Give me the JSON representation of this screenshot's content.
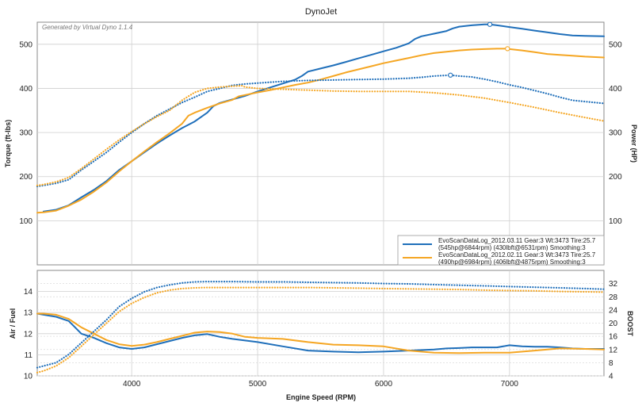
{
  "chart_data": [
    {
      "type": "line",
      "title": "DynoJet",
      "watermark": "Generated by Virtual Dyno 1.1.4",
      "xlabel": "Engine Speed (RPM)",
      "ylabel": "Torque (ft-lbs)",
      "ylabel_right": "Power (HP)",
      "xlim": [
        3250,
        7750
      ],
      "ylim": [
        0,
        550
      ],
      "xticks": [
        4000,
        5000,
        6000,
        7000
      ],
      "yticks": [
        100,
        200,
        300,
        400,
        500
      ],
      "grid": true,
      "legend_position": "bottom-right",
      "legend": [
        {
          "line1": "EvoScanDataLog_2012.03.11 Gear:3 Wt:3473 Tire:25.7",
          "line2": "(545hp@6844rpm) (430lbft@6531rpm) Smoothing:3",
          "color": "#1f6fba"
        },
        {
          "line1": "EvoScanDataLog_2012.02.11 Gear:3 Wt:3473 Tire:25.7",
          "line2": "(490hp@6984rpm) (406lbft@4875rpm) Smoothing:3",
          "color": "#f5a623"
        }
      ],
      "series": [
        {
          "name": "Power 2012.03.11",
          "color": "#1f6fba",
          "style": "solid",
          "x": [
            3300,
            3400,
            3500,
            3600,
            3700,
            3800,
            3900,
            4000,
            4100,
            4200,
            4300,
            4400,
            4500,
            4600,
            4650,
            4700,
            4800,
            4900,
            5000,
            5100,
            5200,
            5300,
            5350,
            5400,
            5500,
            5600,
            5700,
            5800,
            5900,
            6000,
            6100,
            6200,
            6250,
            6300,
            6400,
            6500,
            6550,
            6600,
            6700,
            6800,
            6844,
            6900,
            7000,
            7100,
            7200,
            7300,
            7400,
            7500,
            7600,
            7750
          ],
          "y": [
            121,
            125,
            135,
            153,
            170,
            190,
            215,
            235,
            255,
            275,
            293,
            310,
            325,
            345,
            360,
            367,
            375,
            383,
            393,
            402,
            411,
            420,
            428,
            438,
            445,
            452,
            460,
            468,
            476,
            484,
            492,
            502,
            512,
            518,
            524,
            530,
            536,
            540,
            543,
            545,
            545,
            543,
            539,
            535,
            531,
            527,
            523,
            520,
            519,
            518
          ]
        },
        {
          "name": "Power 2012.02.11",
          "color": "#f5a623",
          "style": "solid",
          "x": [
            3250,
            3300,
            3400,
            3500,
            3600,
            3700,
            3800,
            3900,
            4000,
            4100,
            4200,
            4300,
            4400,
            4450,
            4500,
            4600,
            4700,
            4800,
            4850,
            4900,
            5000,
            5100,
            5200,
            5300,
            5400,
            5500,
            5600,
            5700,
            5800,
            5900,
            6000,
            6100,
            6200,
            6300,
            6400,
            6500,
            6600,
            6700,
            6800,
            6900,
            6984,
            7000,
            7100,
            7200,
            7300,
            7400,
            7500,
            7600,
            7750
          ],
          "y": [
            118,
            119,
            123,
            134,
            148,
            166,
            187,
            212,
            235,
            257,
            278,
            298,
            320,
            338,
            345,
            356,
            366,
            374,
            382,
            385,
            391,
            396,
            402,
            408,
            413,
            420,
            428,
            436,
            443,
            450,
            457,
            463,
            469,
            475,
            480,
            483,
            486,
            488,
            489,
            490,
            490,
            489,
            486,
            482,
            478,
            476,
            474,
            472,
            470
          ]
        },
        {
          "name": "Torque 2012.03.11",
          "color": "#1f6fba",
          "style": "dotted",
          "x": [
            3250,
            3300,
            3400,
            3500,
            3600,
            3700,
            3800,
            3900,
            4000,
            4100,
            4200,
            4300,
            4400,
            4500,
            4600,
            4700,
            4800,
            4900,
            5000,
            5200,
            5400,
            5600,
            5800,
            6000,
            6200,
            6300,
            6400,
            6531,
            6600,
            6700,
            6800,
            6900,
            7000,
            7100,
            7200,
            7300,
            7400,
            7500,
            7600,
            7750
          ],
          "y": [
            178,
            180,
            185,
            193,
            215,
            235,
            255,
            278,
            300,
            320,
            338,
            353,
            368,
            380,
            393,
            400,
            407,
            410,
            412,
            416,
            418,
            419,
            420,
            421,
            423,
            425,
            428,
            430,
            428,
            426,
            421,
            415,
            408,
            402,
            395,
            388,
            380,
            373,
            370,
            366
          ]
        },
        {
          "name": "Torque 2012.02.11",
          "color": "#f5a623",
          "style": "dotted",
          "x": [
            3250,
            3300,
            3400,
            3500,
            3600,
            3700,
            3800,
            3900,
            4000,
            4100,
            4200,
            4300,
            4400,
            4500,
            4600,
            4700,
            4800,
            4875,
            4900,
            5000,
            5200,
            5400,
            5600,
            5800,
            6000,
            6200,
            6400,
            6600,
            6800,
            7000,
            7200,
            7400,
            7600,
            7750
          ],
          "y": [
            180,
            182,
            188,
            198,
            218,
            240,
            262,
            283,
            302,
            320,
            336,
            350,
            373,
            391,
            400,
            403,
            405,
            406,
            403,
            400,
            398,
            396,
            394,
            393,
            393,
            393,
            390,
            385,
            378,
            368,
            357,
            345,
            334,
            326
          ]
        }
      ],
      "markers": [
        {
          "series": "Power 2012.03.11",
          "x": 6844,
          "y": 545
        },
        {
          "series": "Power 2012.02.11",
          "x": 6984,
          "y": 490
        },
        {
          "series": "Torque 2012.03.11",
          "x": 6531,
          "y": 430
        }
      ]
    },
    {
      "type": "line",
      "xlabel": "Engine Speed (RPM)",
      "ylabel": "Air / Fuel",
      "ylabel_right": "BOOST",
      "xlim": [
        3250,
        7750
      ],
      "ylim": [
        10,
        15
      ],
      "ylim_right": [
        4,
        36
      ],
      "xticks": [
        4000,
        5000,
        6000,
        7000
      ],
      "yticks": [
        10,
        11,
        12,
        13,
        14
      ],
      "yticks_right": [
        4,
        8,
        12,
        16,
        20,
        24,
        28,
        32
      ],
      "grid": true,
      "series": [
        {
          "name": "AFR 2012.03.11",
          "color": "#1f6fba",
          "style": "solid",
          "axis": "left",
          "x": [
            3250,
            3300,
            3400,
            3500,
            3550,
            3600,
            3700,
            3800,
            3900,
            4000,
            4100,
            4200,
            4300,
            4400,
            4500,
            4600,
            4700,
            4800,
            5000,
            5200,
            5400,
            5600,
            5800,
            6000,
            6200,
            6400,
            6500,
            6600,
            6700,
            6800,
            6900,
            7000,
            7100,
            7200,
            7300,
            7400,
            7500,
            7600,
            7750
          ],
          "y": [
            12.95,
            12.9,
            12.8,
            12.6,
            12.3,
            12.0,
            11.8,
            11.55,
            11.35,
            11.28,
            11.35,
            11.5,
            11.65,
            11.8,
            11.92,
            11.98,
            11.85,
            11.75,
            11.6,
            11.4,
            11.2,
            11.15,
            11.12,
            11.15,
            11.2,
            11.25,
            11.3,
            11.32,
            11.35,
            11.35,
            11.35,
            11.45,
            11.4,
            11.38,
            11.38,
            11.35,
            11.3,
            11.28,
            11.28
          ]
        },
        {
          "name": "AFR 2012.02.11",
          "color": "#f5a623",
          "style": "solid",
          "axis": "left",
          "x": [
            3250,
            3300,
            3400,
            3500,
            3550,
            3600,
            3700,
            3800,
            3900,
            4000,
            4100,
            4200,
            4300,
            4400,
            4500,
            4600,
            4700,
            4800,
            4900,
            5000,
            5200,
            5400,
            5600,
            5800,
            6000,
            6200,
            6400,
            6600,
            6800,
            7000,
            7200,
            7400,
            7600,
            7750
          ],
          "y": [
            12.95,
            12.95,
            12.9,
            12.7,
            12.5,
            12.3,
            12.0,
            11.7,
            11.5,
            11.42,
            11.48,
            11.6,
            11.75,
            11.9,
            12.05,
            12.1,
            12.08,
            12.0,
            11.85,
            11.8,
            11.75,
            11.6,
            11.48,
            11.45,
            11.4,
            11.2,
            11.1,
            11.08,
            11.1,
            11.1,
            11.2,
            11.3,
            11.28,
            11.25
          ]
        },
        {
          "name": "Boost 2012.03.11",
          "color": "#1f6fba",
          "style": "dotted",
          "axis": "right",
          "x": [
            3250,
            3300,
            3400,
            3500,
            3600,
            3700,
            3800,
            3900,
            4000,
            4100,
            4200,
            4300,
            4400,
            4500,
            4600,
            4800,
            5000,
            5200,
            5400,
            5600,
            5800,
            6000,
            6200,
            6400,
            6600,
            6800,
            7000,
            7200,
            7400,
            7600,
            7750
          ],
          "y": [
            6.5,
            7,
            8,
            10.5,
            14,
            17.5,
            21,
            25,
            27.5,
            29.5,
            30.8,
            31.6,
            32.2,
            32.5,
            32.6,
            32.6,
            32.5,
            32.5,
            32.4,
            32.3,
            32.2,
            32.0,
            31.9,
            31.7,
            31.5,
            31.3,
            31.1,
            30.9,
            30.7,
            30.5,
            30.3
          ]
        },
        {
          "name": "Boost 2012.02.11",
          "color": "#f5a623",
          "style": "dotted",
          "axis": "right",
          "x": [
            3250,
            3300,
            3400,
            3500,
            3600,
            3700,
            3800,
            3900,
            4000,
            4100,
            4200,
            4300,
            4400,
            4500,
            4600,
            4800,
            5000,
            5200,
            5400,
            5600,
            5800,
            6000,
            6200,
            6400,
            6600,
            6800,
            7000,
            7200,
            7400,
            7600,
            7750
          ],
          "y": [
            5,
            5.5,
            7,
            9.5,
            13,
            16.5,
            20,
            23.5,
            26,
            27.8,
            29.2,
            30.0,
            30.5,
            30.7,
            30.8,
            30.8,
            30.8,
            30.8,
            30.8,
            30.7,
            30.6,
            30.5,
            30.4,
            30.3,
            30.2,
            30.0,
            29.9,
            29.8,
            29.6,
            29.5,
            29.4
          ]
        }
      ]
    }
  ]
}
